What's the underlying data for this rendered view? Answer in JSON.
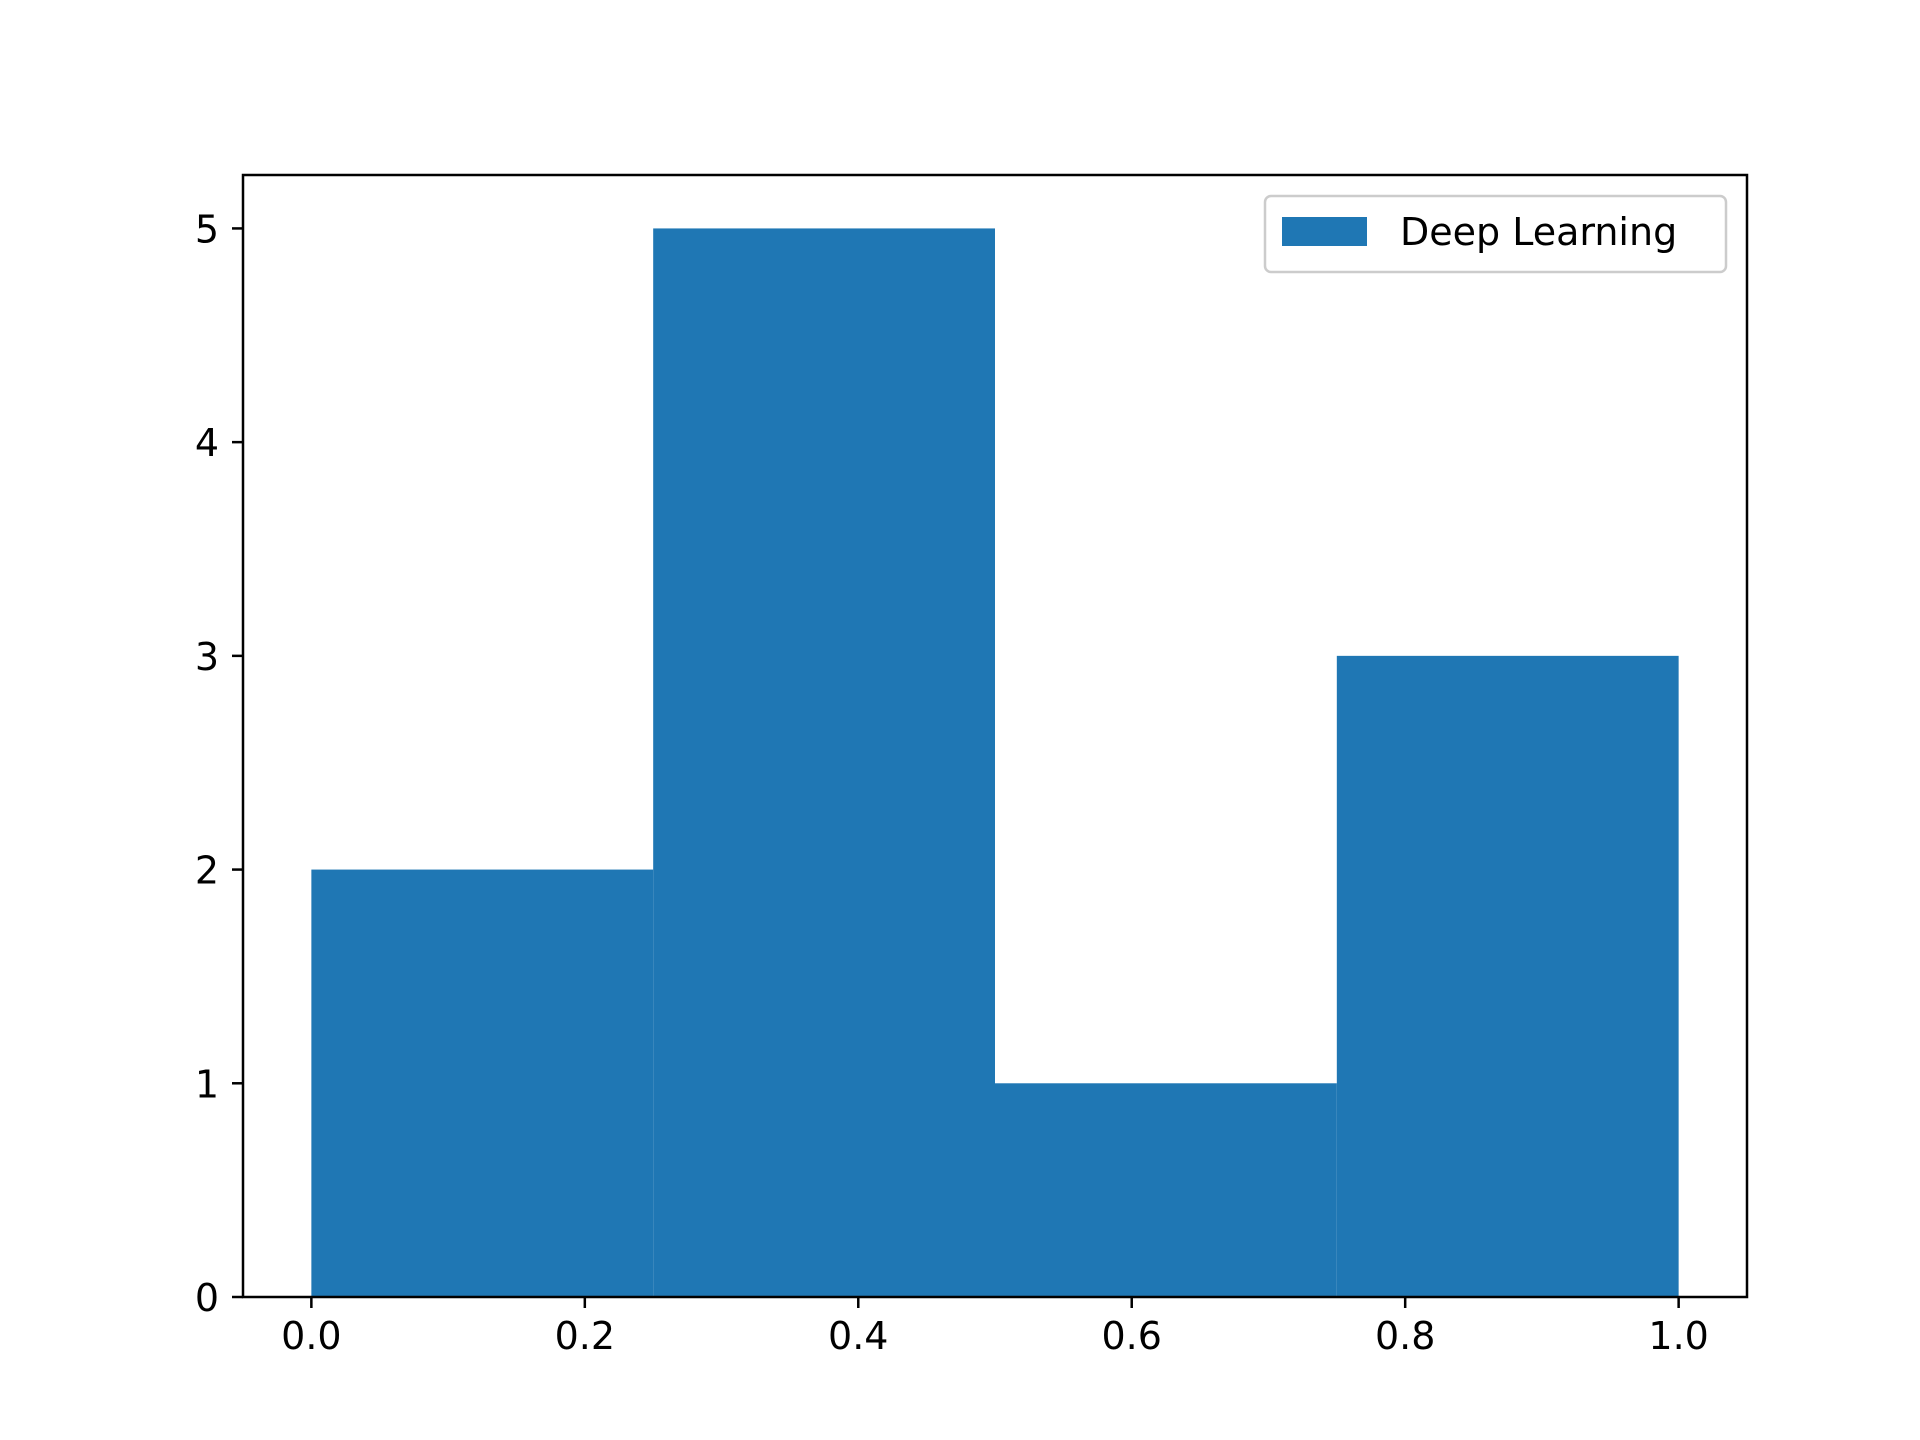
{
  "chart_data": {
    "type": "bar",
    "subtype": "histogram",
    "bin_edges": [
      0.0,
      0.25,
      0.5,
      0.75,
      1.0
    ],
    "values": [
      2,
      5,
      1,
      3
    ],
    "series": [
      {
        "name": "Deep Learning",
        "values": [
          2,
          5,
          1,
          3
        ],
        "color": "#1f77b4"
      }
    ],
    "title": "",
    "xlabel": "",
    "ylabel": "",
    "xlim": [
      -0.05,
      1.05
    ],
    "ylim": [
      0,
      5.25
    ],
    "xticks": [
      0.0,
      0.2,
      0.4,
      0.6,
      0.8,
      1.0
    ],
    "xtick_labels": [
      "0.0",
      "0.2",
      "0.4",
      "0.6",
      "0.8",
      "1.0"
    ],
    "yticks": [
      0,
      1,
      2,
      3,
      4,
      5
    ],
    "ytick_labels": [
      "0",
      "1",
      "2",
      "3",
      "4",
      "5"
    ],
    "grid": false,
    "legend": {
      "placement": "top-right",
      "entries": [
        "Deep Learning"
      ]
    }
  },
  "colors": {
    "bar": "#1f77b4",
    "axes": "#000000",
    "legend_border": "#cccccc",
    "background": "#ffffff"
  }
}
